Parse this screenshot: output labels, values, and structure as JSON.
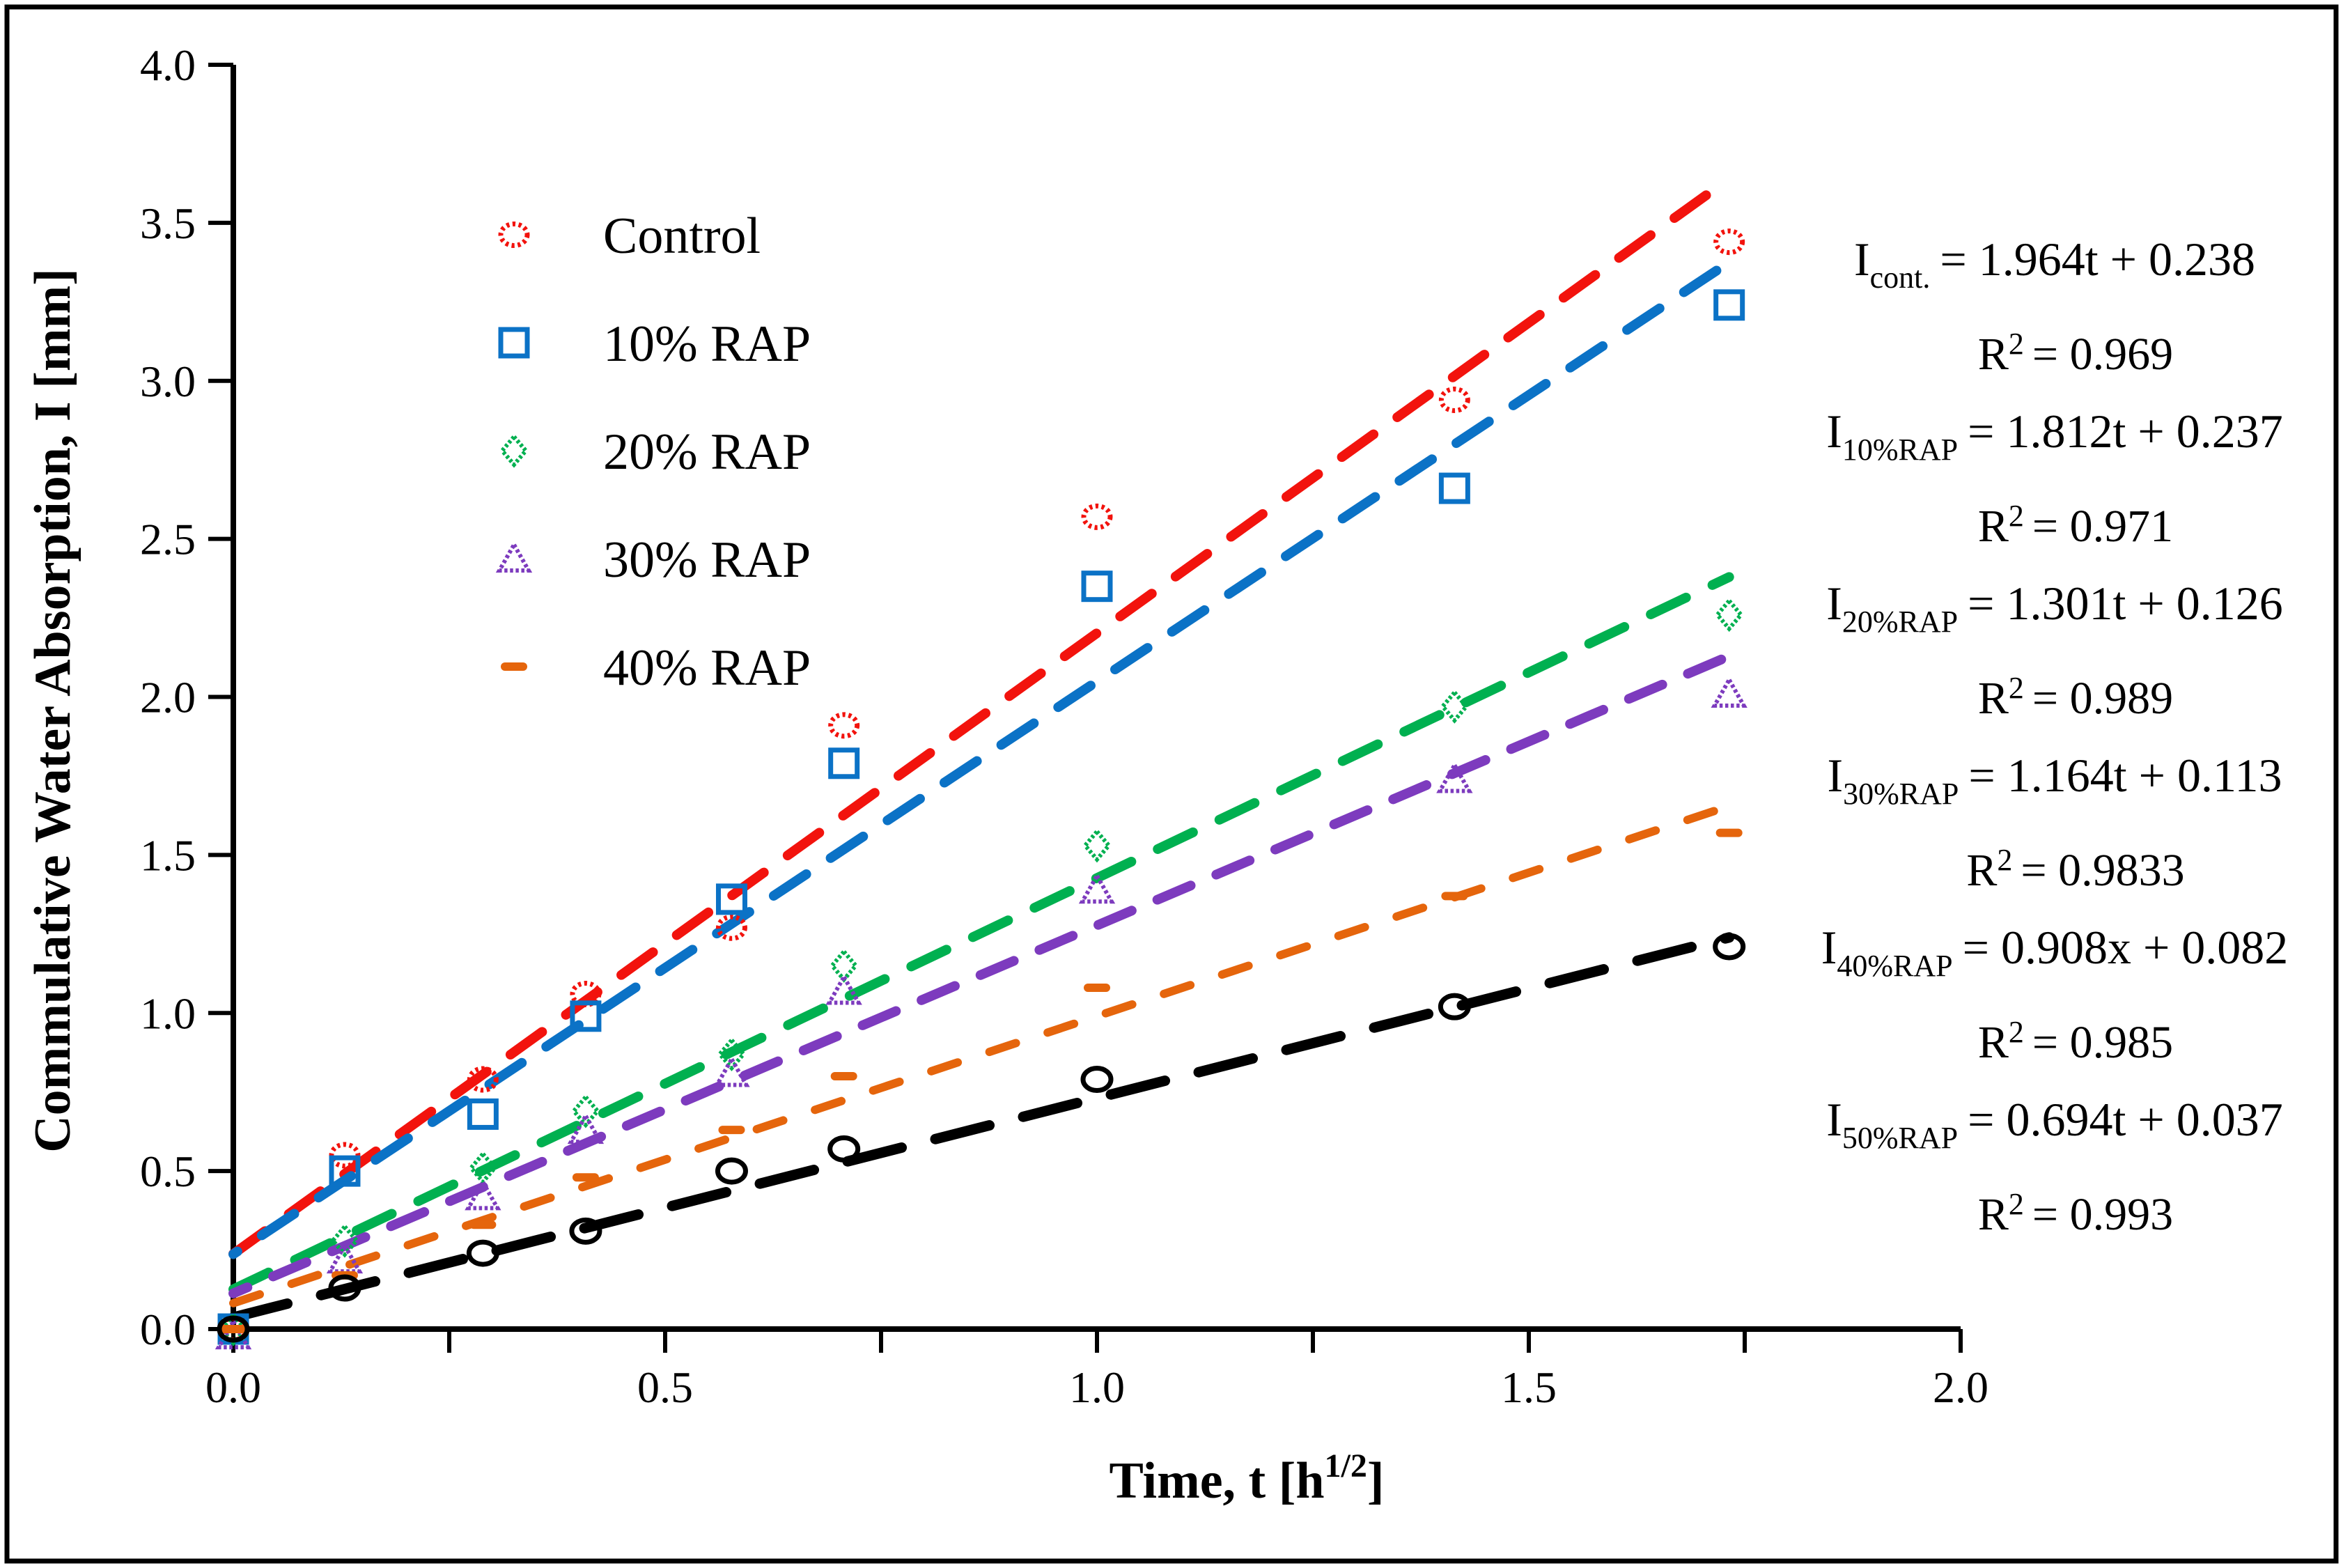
{
  "axes": {
    "y": {
      "title": "Commulative Water Absorption, I [mm]",
      "min": 0,
      "max": 4,
      "step": 0.5,
      "labels": [
        "0.0",
        "0.5",
        "1.0",
        "1.5",
        "2.0",
        "2.5",
        "3.0",
        "3.5",
        "4.0"
      ]
    },
    "x": {
      "title_main": "Time, t [h",
      "title_sup": "1/2",
      "title_close": "]",
      "min": 0,
      "max": 2,
      "minor_step": 0.25,
      "major_step": 0.5,
      "labels": [
        "0.0",
        "0.5",
        "1.0",
        "1.5",
        "2.0"
      ]
    }
  },
  "legend": {
    "items": [
      {
        "label": "Control",
        "series": 0
      },
      {
        "label": "10% RAP",
        "series": 1
      },
      {
        "label": "20% RAP",
        "series": 2
      },
      {
        "label": "30% RAP",
        "series": 3
      },
      {
        "label": "40% RAP",
        "series": 4
      }
    ]
  },
  "equations": [
    {
      "var": "I",
      "sub": "cont.",
      "rhs": "= 1.964t + 0.238",
      "r2_prefix": "R",
      "r2_sup": "2",
      "r2": "= 0.969"
    },
    {
      "var": "I",
      "sub": "10%RAP",
      "rhs": "= 1.812t + 0.237",
      "r2_prefix": "R",
      "r2_sup": "2",
      "r2": "= 0.971"
    },
    {
      "var": "I",
      "sub": "20%RAP",
      "rhs": "= 1.301t + 0.126",
      "r2_prefix": "R",
      "r2_sup": "2",
      "r2": "= 0.989"
    },
    {
      "var": "I",
      "sub": "30%RAP",
      "rhs": "= 1.164t + 0.113",
      "r2_prefix": "R",
      "r2_sup": "2",
      "r2": "= 0.9833"
    },
    {
      "var": "I",
      "sub": "40%RAP",
      "rhs": "= 0.908x + 0.082",
      "r2_prefix": "R",
      "r2_sup": "2",
      "r2": "= 0.985"
    },
    {
      "var": "I",
      "sub": "50%RAP",
      "rhs": "= 0.694t + 0.037",
      "r2_prefix": "R",
      "r2_sup": "2",
      "r2": "= 0.993"
    }
  ],
  "chart_data": {
    "type": "scatter",
    "title": "",
    "xlabel": "Time, t [h^1/2]",
    "ylabel": "Commulative Water Absorption, I [mm]",
    "xlim": [
      0,
      2
    ],
    "ylim": [
      0,
      4
    ],
    "grid": false,
    "legend_position": "upper-left-inside",
    "x": [
      0,
      0.129,
      0.289,
      0.408,
      0.577,
      0.707,
      1.0,
      1.414,
      1.732
    ],
    "trend_x_range": [
      0,
      1.732
    ],
    "series": [
      {
        "name": "Control",
        "color": "#F2130D",
        "marker": "circle-dotted",
        "values": [
          0,
          0.55,
          0.79,
          1.06,
          1.27,
          1.91,
          2.57,
          2.94,
          3.44
        ],
        "trend": {
          "slope": 1.964,
          "intercept": 0.238,
          "r2": 0.969
        }
      },
      {
        "name": "10% RAP",
        "color": "#0B72C6",
        "marker": "square",
        "values": [
          0,
          0.5,
          0.68,
          0.99,
          1.36,
          1.79,
          2.35,
          2.66,
          3.24
        ],
        "trend": {
          "slope": 1.812,
          "intercept": 0.237,
          "r2": 0.971
        }
      },
      {
        "name": "20% RAP",
        "color": "#00B050",
        "marker": "diamond",
        "values": [
          0,
          0.28,
          0.51,
          0.69,
          0.87,
          1.15,
          1.53,
          1.97,
          2.26
        ],
        "trend": {
          "slope": 1.301,
          "intercept": 0.126,
          "r2": 0.989
        }
      },
      {
        "name": "30% RAP",
        "color": "#7D3BBE",
        "marker": "triangle",
        "values": [
          -0.02,
          0.22,
          0.42,
          0.63,
          0.81,
          1.07,
          1.39,
          1.74,
          2.01
        ],
        "trend": {
          "slope": 1.164,
          "intercept": 0.113,
          "r2": 0.9833
        }
      },
      {
        "name": "40% RAP",
        "color": "#E5650C",
        "marker": "dash",
        "values": [
          0,
          0.17,
          0.33,
          0.48,
          0.63,
          0.8,
          1.08,
          1.37,
          1.57
        ],
        "trend": {
          "slope": 0.908,
          "intercept": 0.082,
          "r2": 0.985
        }
      },
      {
        "name": "50% RAP",
        "color": "#000000",
        "marker": "circle",
        "values": [
          0,
          0.13,
          0.24,
          0.31,
          0.5,
          0.57,
          0.79,
          1.02,
          1.21
        ],
        "trend": {
          "slope": 0.694,
          "intercept": 0.037,
          "r2": 0.993
        }
      }
    ]
  }
}
